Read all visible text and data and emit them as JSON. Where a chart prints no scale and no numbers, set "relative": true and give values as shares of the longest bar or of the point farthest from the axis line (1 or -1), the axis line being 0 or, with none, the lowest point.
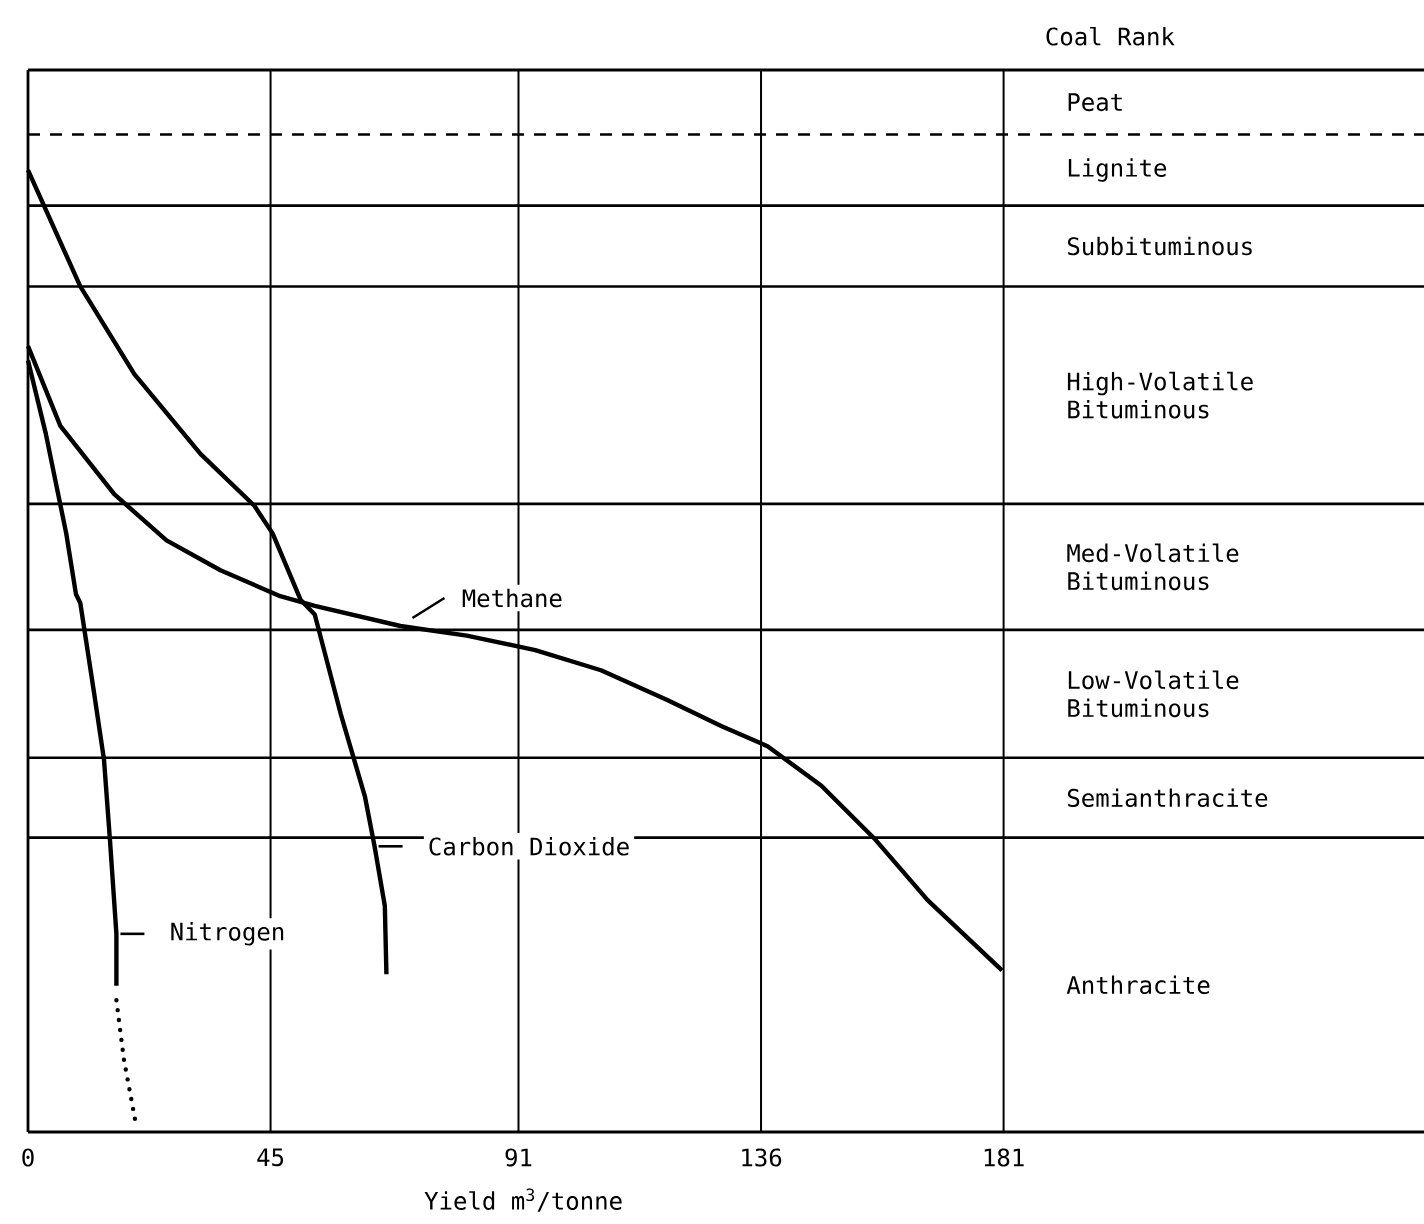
{
  "chart_data": {
    "type": "line",
    "xlabel": "Yield m$^{3}$/tonne",
    "relative": true,
    "xlim": [
      0,
      259
    ],
    "xticks": [
      0,
      45,
      91,
      136,
      181
    ],
    "grid": "x",
    "marker": "none",
    "legend": "bottom left",
    "series": [
      {
        "name": "Carbon Dioxide",
        "color": "#000000",
        "x": [
          0,
          9.7,
          19.7,
          32,
          42,
          45.4,
          50.6,
          53.2,
          58,
          62.5,
          64.3,
          66.2,
          66.5
        ],
        "values": [
          1.0,
          0.879,
          0.788,
          0.705,
          0.651,
          0.622,
          0.553,
          0.538,
          0.435,
          0.349,
          0.297,
          0.235,
          0.164
        ]
      },
      {
        "name": "Methane",
        "color": "#000000",
        "x": [
          0,
          6,
          16,
          25.7,
          35.7,
          46.8,
          53.2,
          69.1,
          81.4,
          94.1,
          106.3,
          118.6,
          128.6,
          137.2,
          147.2,
          157.2,
          166.9,
          180.7
        ],
        "values": [
          0.817,
          0.734,
          0.663,
          0.615,
          0.584,
          0.557,
          0.547,
          0.526,
          0.516,
          0.501,
          0.48,
          0.449,
          0.422,
          0.401,
          0.36,
          0.304,
          0.241,
          0.168
        ]
      },
      {
        "name": "Nitrogen",
        "color": "#000000",
        "x": [
          0,
          3.3,
          7.1,
          8.9,
          9.7,
          12.3,
          14.1,
          15.2,
          16.4,
          16.4
        ],
        "values": [
          0.802,
          0.726,
          0.622,
          0.559,
          0.55,
          0.455,
          0.387,
          0.304,
          0.206,
          0.152
        ]
      },
      {
        "color": "#000000",
        "line_style": "dotted",
        "x": [
          16.4,
          17.8,
          20.1
        ],
        "values": [
          0.137,
          0.075,
          0.006
        ]
      }
    ],
    "ref_lines": [
      {
        "axis": "y",
        "value": 1.037,
        "line_style": "dashed"
      },
      {
        "axis": "y",
        "value": 0.963
      },
      {
        "axis": "y",
        "value": 0.879
      },
      {
        "axis": "y",
        "value": 0.653
      },
      {
        "axis": "y",
        "value": 0.522
      },
      {
        "axis": "y",
        "value": 0.389
      },
      {
        "axis": "y",
        "value": 0.306
      }
    ],
    "annotations": [
      "Coal Rank",
      "Peat",
      "Lignite",
      "Subbituminous",
      "High-Volatile Bituminous",
      "Med-Volatile Bituminous",
      "Low-Volatile Bituminous",
      "Semianthracite",
      "Anthracite"
    ]
  }
}
